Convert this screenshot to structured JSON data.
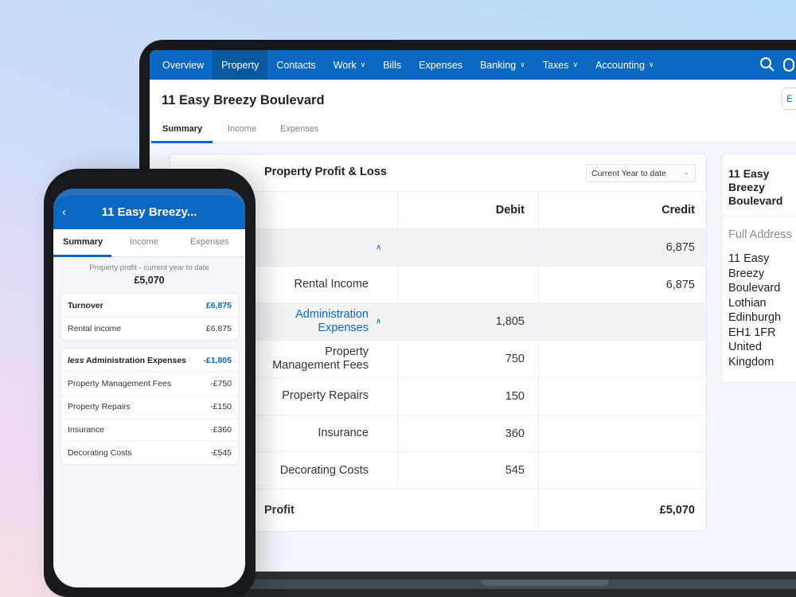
{
  "nav": {
    "items": [
      {
        "label": "Overview",
        "dropdown": false
      },
      {
        "label": "Property",
        "dropdown": false,
        "active": true
      },
      {
        "label": "Contacts",
        "dropdown": false
      },
      {
        "label": "Work",
        "dropdown": true
      },
      {
        "label": "Bills",
        "dropdown": false
      },
      {
        "label": "Expenses",
        "dropdown": false
      },
      {
        "label": "Banking",
        "dropdown": true
      },
      {
        "label": "Taxes",
        "dropdown": true
      },
      {
        "label": "Accounting",
        "dropdown": true
      }
    ],
    "icons": [
      "search-icon",
      "help-icon"
    ]
  },
  "header": {
    "title": "11 Easy Breezy Boulevard",
    "edit_label": "E",
    "tabs": [
      "Summary",
      "Income",
      "Expenses"
    ],
    "active_tab": "Summary"
  },
  "pl": {
    "title": "Property Profit & Loss",
    "range": "Current Year to date",
    "columns": {
      "debit": "Debit",
      "credit": "Credit"
    },
    "rows": [
      {
        "label": "",
        "debit": "",
        "credit": "6,875",
        "style": "group"
      },
      {
        "label": "Rental Income",
        "debit": "",
        "credit": "6,875",
        "style": "item"
      },
      {
        "label": "Administration Expenses",
        "debit": "1,805",
        "credit": "",
        "style": "group"
      },
      {
        "label": "Property Management Fees",
        "debit": "750",
        "credit": "",
        "style": "item"
      },
      {
        "label": "Property Repairs",
        "debit": "150",
        "credit": "",
        "style": "item"
      },
      {
        "label": "Insurance",
        "debit": "360",
        "credit": "",
        "style": "item"
      },
      {
        "label": "Decorating Costs",
        "debit": "545",
        "credit": "",
        "style": "item"
      }
    ],
    "total": {
      "label": "Profit",
      "credit": "£5,070"
    }
  },
  "address": {
    "title": "11 Easy Breezy Boulevard",
    "label": "Full Address",
    "lines": [
      "11 Easy Breezy Boulevard",
      "Lothian",
      "Edinburgh",
      "EH1 1FR",
      "United Kingdom"
    ]
  },
  "phone": {
    "title": "11 Easy Breezy...",
    "tabs": [
      "Summary",
      "Income",
      "Expenses"
    ],
    "subtitle": "Property profit - current year to date",
    "profit": "£5,070",
    "turnover": {
      "label": "Turnover",
      "value": "£6,875",
      "items": [
        {
          "label": "Rental income",
          "value": "£6,875"
        }
      ]
    },
    "expenses": {
      "prefix": "less",
      "label": "Administration Expenses",
      "value": "-£1,805",
      "items": [
        {
          "label": "Property Management Fees",
          "value": "-£750"
        },
        {
          "label": "Property Repairs",
          "value": "-£150"
        },
        {
          "label": "Insurance",
          "value": "-£360"
        },
        {
          "label": "Decorating Costs",
          "value": "-£545"
        }
      ]
    }
  },
  "colors": {
    "brand": "#0a68c2"
  }
}
